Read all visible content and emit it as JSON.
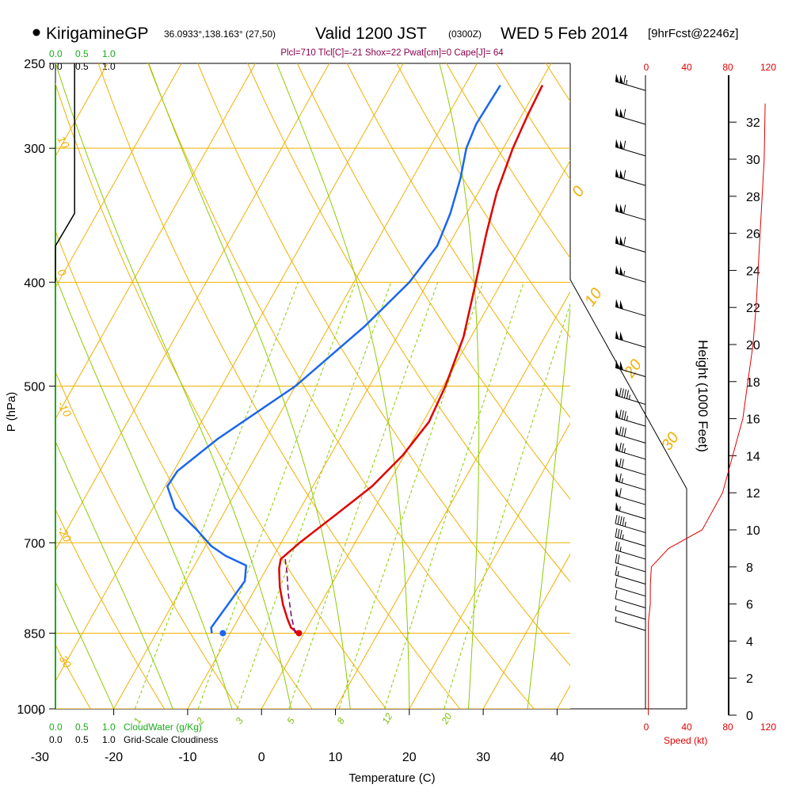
{
  "header": {
    "station": "KirigamineGP",
    "location": "36.0933°,138.163° (27,50)",
    "valid": "Valid 1200 JST",
    "zulu": "(0300Z)",
    "date": "WED 5 Feb 2014",
    "forecast": "[9hrFcst@2246z]",
    "indices": "Plcl=710 Tlcl[C]=-21 Shox=22 Pwat[cm]=0 Cape[J]= 64"
  },
  "colors": {
    "temperature": "#e00000",
    "dewpoint": "#1a66ee",
    "parcel": "#7a006e",
    "isotherm": "#f0b000",
    "dry_adiabat": "#f0b000",
    "moist_adiabat": "#8ccc00",
    "mixing_ratio": "#8ccc00",
    "cloud_water": "#1aaa1a",
    "wind_speed": "#e00000",
    "indices_text": "#8b004f"
  },
  "scales": {
    "cloud_water_ticks": [
      "0.0",
      "0.5",
      "1.0"
    ],
    "cloudiness_ticks": [
      "0.0",
      "0.5",
      "1.0"
    ],
    "cloud_water_label": "CloudWater (g/Kg)",
    "cloudiness_label": "Grid-Scale Cloudiness",
    "speed_ticks": [
      "0",
      "40",
      "80",
      "120"
    ],
    "speed_label": "Speed (kt)"
  },
  "chart_data": {
    "type": "skew-t",
    "xlabel": "Temperature (C)",
    "ylabel": "P (hPa)",
    "y2label": "Height (1000 Feet)",
    "x_ticks": [
      -30,
      -20,
      -10,
      0,
      10,
      20,
      30,
      40
    ],
    "p_ticks": [
      250,
      300,
      400,
      500,
      700,
      850,
      1000
    ],
    "height_ticks": [
      0,
      2,
      4,
      6,
      8,
      10,
      12,
      14,
      16,
      18,
      20,
      22,
      24,
      26,
      28,
      30,
      32
    ],
    "isotherm_labels": [
      -30,
      -20,
      -10,
      0,
      10,
      20,
      30
    ],
    "dry_adiabat_labels": [
      10,
      0,
      -10,
      -20,
      -30
    ],
    "mixing_ratio_labels": [
      1,
      2,
      3,
      5,
      8,
      12,
      20
    ],
    "series": [
      {
        "name": "temperature",
        "points": [
          [
            262,
            -9.5
          ],
          [
            280,
            -9.2
          ],
          [
            300,
            -8.7
          ],
          [
            330,
            -7.5
          ],
          [
            360,
            -5.8
          ],
          [
            400,
            -3.5
          ],
          [
            450,
            -1.0
          ],
          [
            500,
            0.3
          ],
          [
            540,
            0.8
          ],
          [
            580,
            -0.2
          ],
          [
            620,
            -2.0
          ],
          [
            660,
            -4.8
          ],
          [
            700,
            -7.5
          ],
          [
            725,
            -8.8
          ],
          [
            740,
            -8.3
          ],
          [
            770,
            -6.8
          ],
          [
            800,
            -5.0
          ],
          [
            825,
            -3.3
          ],
          [
            840,
            -2.2
          ],
          [
            850,
            -0.8
          ]
        ]
      },
      {
        "name": "dewpoint",
        "points": [
          [
            262,
            -15.2
          ],
          [
            285,
            -15.5
          ],
          [
            300,
            -15.0
          ],
          [
            320,
            -13.5
          ],
          [
            345,
            -12.2
          ],
          [
            370,
            -11.5
          ],
          [
            400,
            -12.5
          ],
          [
            440,
            -15.2
          ],
          [
            500,
            -20.0
          ],
          [
            560,
            -26.5
          ],
          [
            600,
            -29.5
          ],
          [
            620,
            -29.7
          ],
          [
            650,
            -27.0
          ],
          [
            680,
            -22.5
          ],
          [
            705,
            -19.2
          ],
          [
            720,
            -16.5
          ],
          [
            735,
            -13.0
          ],
          [
            760,
            -12.0
          ],
          [
            800,
            -12.5
          ],
          [
            840,
            -13.0
          ],
          [
            850,
            -12.5
          ]
        ]
      },
      {
        "name": "parcel",
        "points": [
          [
            850,
            -1.2
          ],
          [
            820,
            -3.0
          ],
          [
            780,
            -5.2
          ],
          [
            745,
            -7.0
          ],
          [
            725,
            -8.2
          ]
        ]
      }
    ],
    "surface_temperature": -0.7,
    "surface_dewpoint": -11.0,
    "cloud_water_profile": [
      [
        250,
        0.0
      ],
      [
        1000,
        0.0
      ]
    ],
    "cloudiness_profile": [
      [
        250,
        0.35
      ],
      [
        345,
        0.35
      ],
      [
        370,
        0.0
      ]
    ],
    "wind_speed_profile": [
      [
        0,
        2
      ],
      [
        2,
        2
      ],
      [
        4,
        2
      ],
      [
        5,
        2
      ],
      [
        6,
        4
      ],
      [
        7,
        4
      ],
      [
        8,
        5
      ],
      [
        9,
        22
      ],
      [
        10,
        55
      ],
      [
        12,
        75
      ],
      [
        14,
        85
      ],
      [
        16,
        95
      ],
      [
        18,
        100
      ],
      [
        20,
        105
      ],
      [
        22,
        108
      ],
      [
        24,
        110
      ],
      [
        26,
        112
      ],
      [
        28,
        114
      ],
      [
        30,
        116
      ],
      [
        33,
        117
      ]
    ],
    "wind_barbs": [
      {
        "p": 265,
        "speed": 115
      },
      {
        "p": 285,
        "speed": 110
      },
      {
        "p": 305,
        "speed": 110
      },
      {
        "p": 325,
        "speed": 110
      },
      {
        "p": 350,
        "speed": 110
      },
      {
        "p": 375,
        "speed": 110
      },
      {
        "p": 400,
        "speed": 105
      },
      {
        "p": 430,
        "speed": 100
      },
      {
        "p": 460,
        "speed": 100
      },
      {
        "p": 490,
        "speed": 100
      },
      {
        "p": 520,
        "speed": 95
      },
      {
        "p": 545,
        "speed": 85
      },
      {
        "p": 565,
        "speed": 80
      },
      {
        "p": 585,
        "speed": 75
      },
      {
        "p": 605,
        "speed": 70
      },
      {
        "p": 625,
        "speed": 65
      },
      {
        "p": 645,
        "speed": 60
      },
      {
        "p": 665,
        "speed": 55
      },
      {
        "p": 685,
        "speed": 45
      },
      {
        "p": 705,
        "speed": 35
      },
      {
        "p": 725,
        "speed": 25
      },
      {
        "p": 745,
        "speed": 20
      },
      {
        "p": 765,
        "speed": 15
      },
      {
        "p": 785,
        "speed": 10
      },
      {
        "p": 805,
        "speed": 10
      },
      {
        "p": 825,
        "speed": 5
      },
      {
        "p": 845,
        "speed": 5
      }
    ]
  }
}
